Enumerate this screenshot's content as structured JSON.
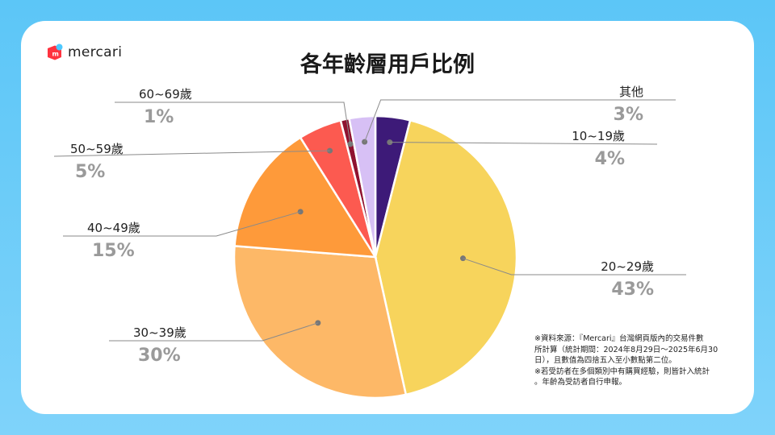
{
  "brand": {
    "name": "mercari"
  },
  "colors": {
    "background": "#6fcdf8",
    "card": "#ffffff"
  },
  "chart_data": {
    "type": "pie",
    "title": "各年齡層用戶比例",
    "categories": [
      "10~19歲",
      "20~29歲",
      "30~39歲",
      "40~49歲",
      "50~59歲",
      "60~69歲",
      "其他"
    ],
    "values": [
      4,
      43,
      30,
      15,
      5,
      1,
      3
    ],
    "value_labels": [
      "4%",
      "43%",
      "30%",
      "15%",
      "5%",
      "1%",
      "3%"
    ],
    "colors": [
      "#3d1a78",
      "#f7d45c",
      "#fdb867",
      "#fe9a3a",
      "#fc5a50",
      "#8f1230",
      "#d7c0f5"
    ],
    "start_angle_deg": 0,
    "direction": "clockwise",
    "legend": "none"
  },
  "footnote": [
    "※資料來源：『Mercari』台灣網頁版內的交易件數",
    "所計算（統計期間：2024年8月29日～2025年6月30",
    "日），且數值為四捨五入至小數點第二位。",
    "※若受訪者在多個類別中有購買經驗，則皆計入統計",
    "。年齡為受訪者自行申報。"
  ]
}
